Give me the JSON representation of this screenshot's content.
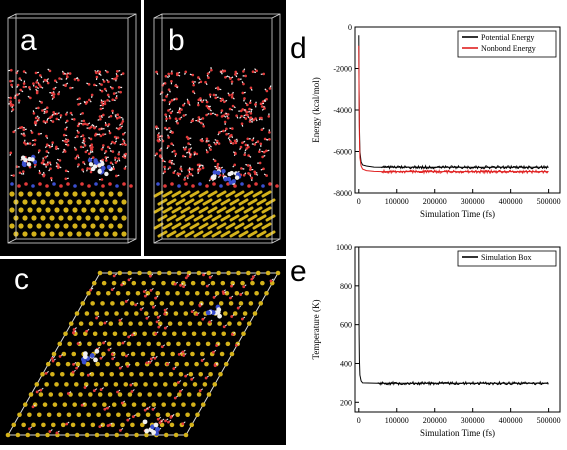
{
  "panels": {
    "a": "a",
    "b": "b",
    "c": "c",
    "d": "d",
    "e": "e"
  },
  "colors": {
    "background_dark": "#000000",
    "gold_atom": "#d4b21a",
    "water_oxygen": "#e23a3a",
    "water_hydrogen": "#f0f0f0",
    "nitrogen": "#3a4fd0",
    "box_edge": "#d9d9d9",
    "series_potential": "#000000",
    "series_nonbond": "#e02020"
  },
  "chart_data": [
    {
      "id": "d",
      "type": "line",
      "xlabel": "Simulation Time (fs)",
      "ylabel": "Energy (kcal/mol)",
      "xlim": [
        -10000,
        530000
      ],
      "ylim": [
        -8000,
        0
      ],
      "xticks": [
        "0",
        "100000",
        "200000",
        "300000",
        "400000",
        "500000"
      ],
      "yticks": [
        "0",
        "-2000",
        "-4000",
        "-6000",
        "-8000"
      ],
      "legend_position": "top-right",
      "series": [
        {
          "name": "Potential Energy",
          "color": "#000000",
          "x": [
            0,
            500,
            1500,
            3000,
            6000,
            10000,
            20000,
            40000,
            60000,
            100000,
            200000,
            300000,
            400000,
            500000
          ],
          "y": [
            -400,
            -2500,
            -4800,
            -6000,
            -6500,
            -6650,
            -6700,
            -6750,
            -6760,
            -6760,
            -6760,
            -6760,
            -6760,
            -6760
          ]
        },
        {
          "name": "Nonbond Energy",
          "color": "#e02020",
          "x": [
            0,
            500,
            1500,
            3000,
            6000,
            10000,
            20000,
            40000,
            60000,
            100000,
            200000,
            300000,
            400000,
            500000
          ],
          "y": [
            -900,
            -3000,
            -5200,
            -6300,
            -6700,
            -6850,
            -6920,
            -6960,
            -6970,
            -6970,
            -6970,
            -6970,
            -6970,
            -6970
          ]
        }
      ]
    },
    {
      "id": "e",
      "type": "line",
      "xlabel": "Simulation Time (fs)",
      "ylabel": "Temperature (K)",
      "xlim": [
        -10000,
        530000
      ],
      "ylim": [
        150,
        1000
      ],
      "xticks": [
        "0",
        "100000",
        "200000",
        "300000",
        "400000",
        "500000"
      ],
      "yticks": [
        "1000",
        "800",
        "600",
        "400",
        "200"
      ],
      "legend_position": "top-right",
      "series": [
        {
          "name": "Simulation Box",
          "color": "#000000",
          "x": [
            0,
            300,
            800,
            1500,
            3000,
            6000,
            10000,
            50000,
            100000,
            200000,
            300000,
            400000,
            500000
          ],
          "y": [
            1000,
            800,
            550,
            420,
            340,
            310,
            300,
            298,
            298,
            298,
            298,
            298,
            298
          ]
        }
      ]
    }
  ]
}
